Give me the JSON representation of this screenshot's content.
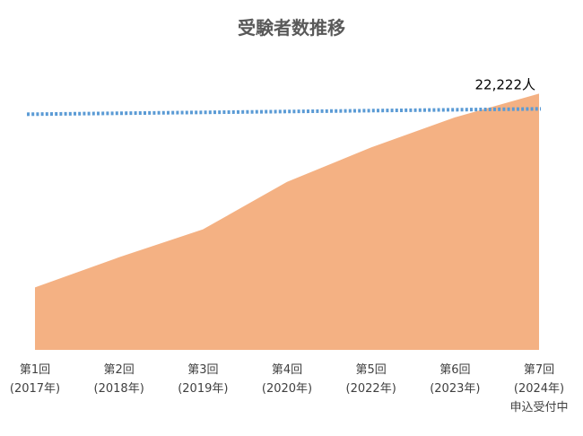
{
  "chart_data": {
    "type": "area",
    "title": "受験者数推移",
    "xlabel": "",
    "ylabel": "",
    "categories": [
      [
        "第1回",
        "(2017年)"
      ],
      [
        "第2回",
        "(2018年)"
      ],
      [
        "第3回",
        "(2019年)"
      ],
      [
        "第4回",
        "(2020年)"
      ],
      [
        "第5回",
        "(2022年)"
      ],
      [
        "第6回",
        "(2023年)"
      ],
      [
        "第7回",
        "(2024年)",
        "申込受付中"
      ]
    ],
    "series": [
      {
        "values": [
          5800,
          8600,
          11200,
          15600,
          18800,
          21600,
          23800
        ],
        "color": "#F4B183"
      }
    ],
    "target_line": {
      "value": 22222,
      "label": "22,222人",
      "color": "#5B9BD5",
      "style": "dotted"
    },
    "ylim": [
      0,
      25000
    ],
    "y_axis_visible": false,
    "grid": false,
    "legend": "none"
  }
}
